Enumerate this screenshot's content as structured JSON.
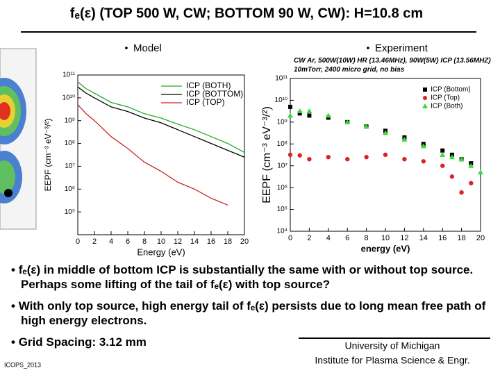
{
  "slide_title": "fₑ(ε) (TOP 500 W, CW; BOTTOM 90 W, CW): H=10.8 cm",
  "chart_data": [
    {
      "type": "line",
      "title": "Model",
      "xlabel": "Energy (eV)",
      "ylabel": "EEPF (cm⁻³ eV⁻³/²)",
      "x": [
        0,
        1,
        2,
        4,
        6,
        8,
        10,
        12,
        14,
        16,
        18,
        20
      ],
      "series": [
        {
          "name": "ICP (BOTH)",
          "color": "#22aa22",
          "values": [
            50000000000.0,
            25000000000.0,
            16000000000.0,
            6300000000.0,
            4000000000.0,
            2000000000.0,
            1300000000.0,
            700000000.0,
            400000000.0,
            200000000.0,
            100000000.0,
            40000000.0
          ]
        },
        {
          "name": "ICP (BOTTOM)",
          "color": "#000000",
          "values": [
            30000000000.0,
            16000000000.0,
            10000000000.0,
            4000000000.0,
            2500000000.0,
            1300000000.0,
            800000000.0,
            400000000.0,
            200000000.0,
            100000000.0,
            50000000.0,
            25000000.0
          ]
        },
        {
          "name": "ICP (TOP)",
          "color": "#cc2222",
          "values": [
            5000000000.0,
            2000000000.0,
            1000000000.0,
            200000000.0,
            60000000.0,
            15000000.0,
            6000000.0,
            2000000.0,
            1000000.0,
            400000.0,
            200000.0,
            null
          ]
        }
      ],
      "xlim": [
        0,
        20
      ],
      "xticks": [
        0,
        2,
        4,
        6,
        8,
        10,
        12,
        14,
        16,
        18,
        20
      ],
      "ylim": [
        10000,
        100000000000.0
      ],
      "log_y": true,
      "yticks": [
        {
          "value": 100000,
          "label": "10⁵"
        },
        {
          "value": 1000000,
          "label": "10⁶"
        },
        {
          "value": 10000000.0,
          "label": "10⁷"
        },
        {
          "value": 100000000.0,
          "label": "10⁸"
        },
        {
          "value": 1000000000.0,
          "label": "10⁹"
        },
        {
          "value": 10000000000.0,
          "label": "10¹⁰"
        },
        {
          "value": 100000000000.0,
          "label": "10¹¹"
        }
      ],
      "legend": "upper right"
    },
    {
      "type": "scatter",
      "title": "Experiment",
      "subtitle": "CW Ar, 500W(10W) HR (13.46MHz), 90W(5W) ICP (13.56MHZ) 10mTorr, 2400 micro grid, no bias",
      "xlabel": "energy (eV)",
      "ylabel": "EEPF (cm⁻³ eV⁻³/²)",
      "x": [
        0,
        1,
        2,
        4,
        6,
        8,
        10,
        12,
        14,
        16,
        17,
        18,
        19,
        20
      ],
      "series": [
        {
          "name": "ICP (Bottom)",
          "color": "#000000",
          "marker": "square",
          "values": [
            5000000000.0,
            2500000000.0,
            2000000000.0,
            1600000000.0,
            1000000000.0,
            630000000.0,
            400000000.0,
            200000000.0,
            100000000.0,
            50000000.0,
            32000000.0,
            20000000.0,
            13000000.0,
            null
          ]
        },
        {
          "name": "ICP (Top)",
          "color": "#dd2222",
          "marker": "circle",
          "values": [
            32000000.0,
            30000000.0,
            20000000.0,
            25000000.0,
            20000000.0,
            25000000.0,
            32000000.0,
            20000000.0,
            16000000.0,
            10000000.0,
            3200000.0,
            600000,
            1600000,
            null
          ]
        },
        {
          "name": "ICP (Both)",
          "color": "#33dd33",
          "marker": "triangle",
          "values": [
            2000000000.0,
            3200000000.0,
            3200000000.0,
            2000000000.0,
            1000000000.0,
            630000000.0,
            320000000.0,
            160000000.0,
            80000000.0,
            32000000.0,
            25000000.0,
            20000000.0,
            10000000.0,
            5000000.0
          ]
        }
      ],
      "xlim": [
        0,
        20
      ],
      "xticks": [
        0,
        2,
        4,
        6,
        8,
        10,
        12,
        14,
        16,
        18,
        20
      ],
      "ylim": [
        10000,
        100000000000.0
      ],
      "log_y": true,
      "yticks": [
        {
          "value": 10000,
          "label": "10⁴"
        },
        {
          "value": 100000,
          "label": "10⁵"
        },
        {
          "value": 1000000,
          "label": "10⁶"
        },
        {
          "value": 10000000.0,
          "label": "10⁷"
        },
        {
          "value": 100000000.0,
          "label": "10⁸"
        },
        {
          "value": 1000000000.0,
          "label": "10⁹"
        },
        {
          "value": 10000000000.0,
          "label": "10¹⁰"
        },
        {
          "value": 100000000000.0,
          "label": "10¹¹"
        }
      ],
      "legend": "upper right"
    }
  ],
  "bullets": [
    "fₑ(ε) in middle of bottom ICP is substantially the same with or without top source.  Perhaps some lifting of the tail of fₑ(ε) with top source?",
    "With only top source, high energy tail of fₑ(ε) persists due to long mean free path of high energy electrons.",
    "Grid Spacing: 3.12 mm"
  ],
  "footer": {
    "conference": "ICOPS_2013",
    "affiliation": [
      "University of Michigan",
      "Institute for Plasma Science & Engr."
    ]
  }
}
